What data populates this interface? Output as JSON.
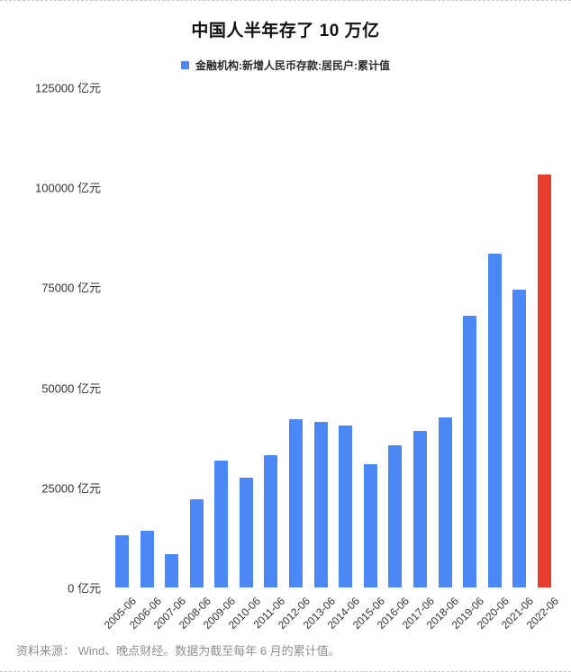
{
  "page": {
    "title": "中国人半年存了 10 万亿",
    "footer": "资料来源： Wind、晚点财经。数据为截至每年 6 月的累计值。"
  },
  "legend": {
    "label": "金融机构:新增人民币存款:居民户:累计值",
    "color": "#4b87f5"
  },
  "chart_data": {
    "type": "bar",
    "title": "中国人半年存了 10 万亿",
    "categories": [
      "2005-06",
      "2006-06",
      "2007-06",
      "2008-06",
      "2009-06",
      "2010-06",
      "2011-06",
      "2012-06",
      "2013-06",
      "2014-06",
      "2015-06",
      "2016-06",
      "2017-06",
      "2018-06",
      "2019-06",
      "2020-06",
      "2021-06",
      "2022-06"
    ],
    "values": [
      13000,
      14200,
      8300,
      22000,
      31800,
      27400,
      33000,
      42000,
      41300,
      40500,
      30800,
      35600,
      39200,
      42600,
      68000,
      83500,
      74500,
      103300
    ],
    "unit": "亿元",
    "xlabel": "",
    "ylabel": "亿元",
    "ylim": [
      0,
      125000
    ],
    "y_ticks": [
      0,
      25000,
      50000,
      75000,
      100000,
      125000
    ],
    "grid": false,
    "legend_position": "top-center",
    "bar_color": "#4b87f5",
    "highlight_index": 17,
    "highlight_color": "#e73c2e"
  }
}
